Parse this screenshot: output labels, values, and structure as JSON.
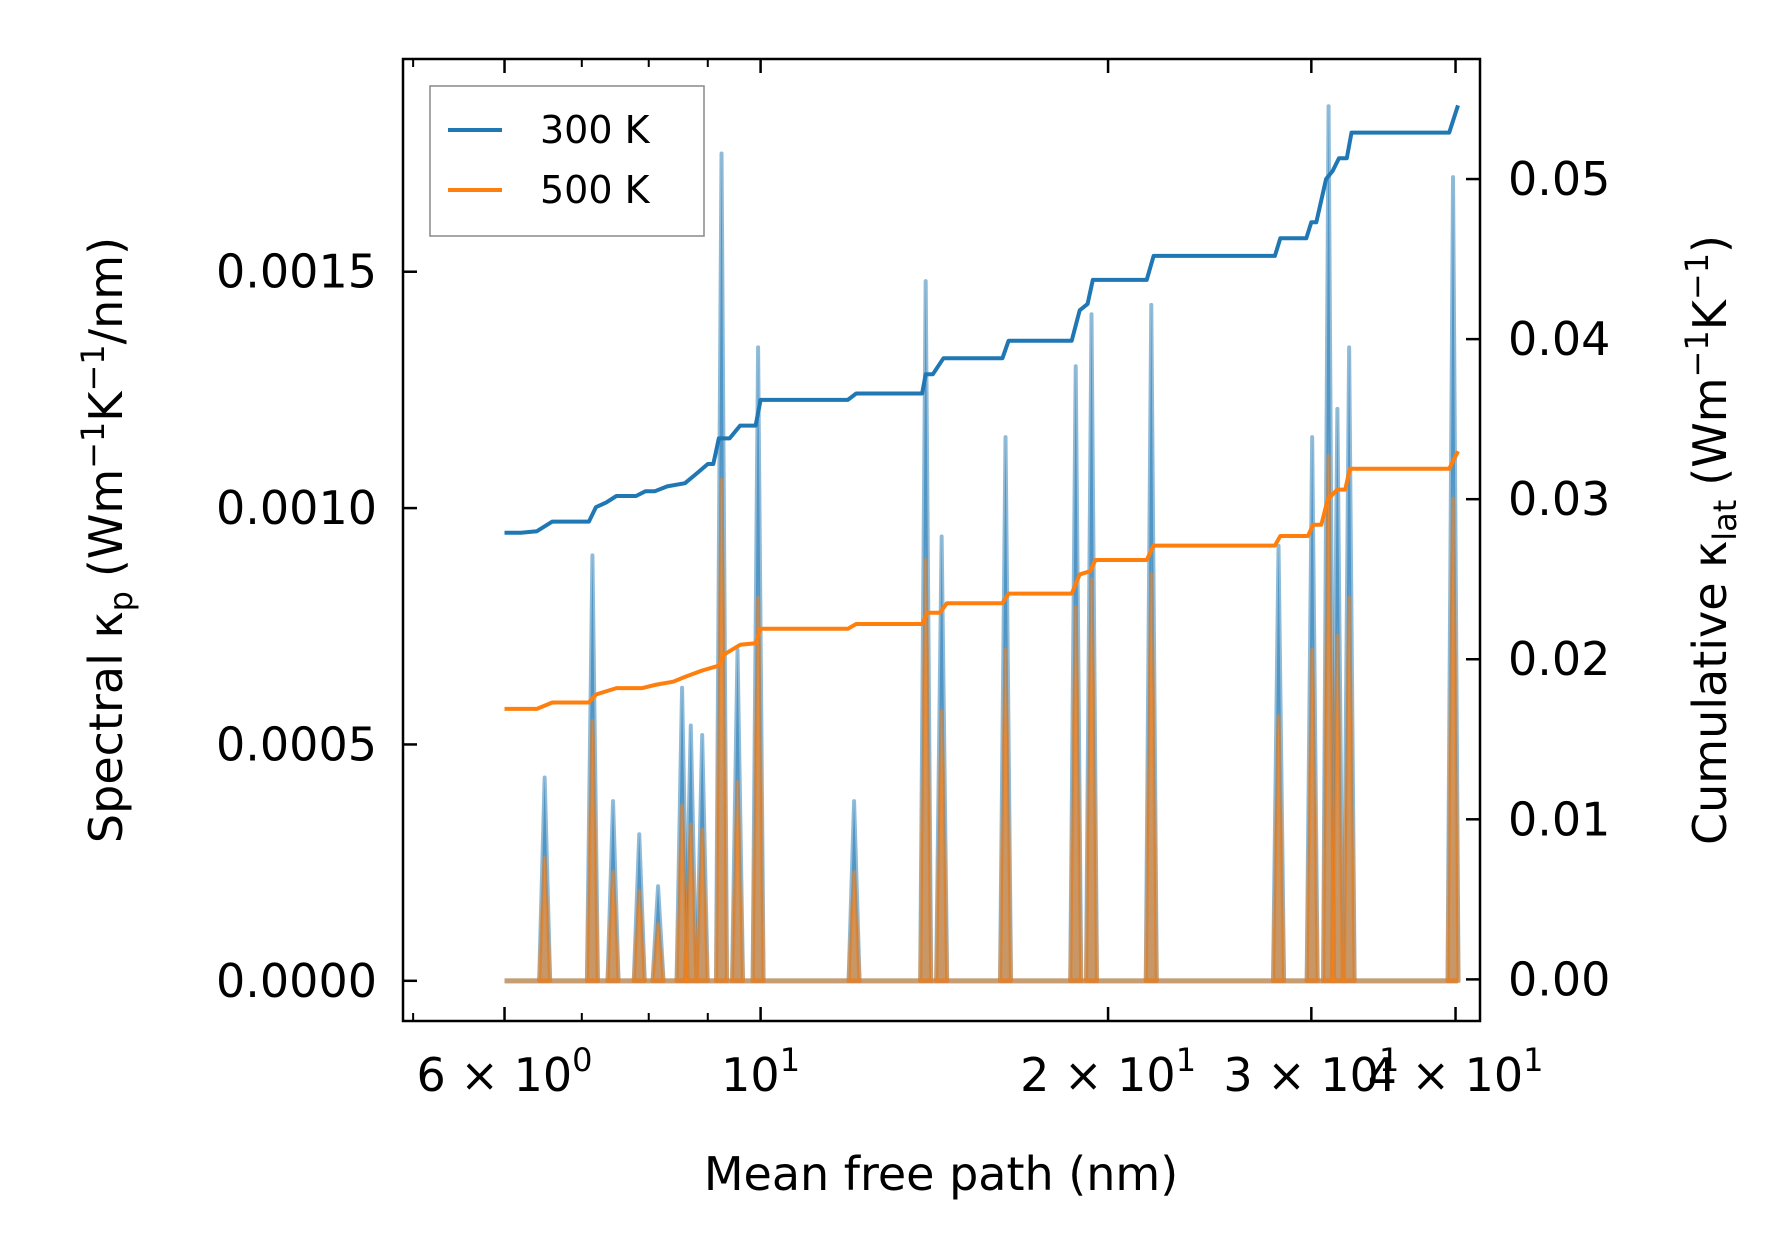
{
  "chart_data": {
    "type": "line",
    "x_scale": "log",
    "xlabel": "Mean free path (nm)",
    "ylabel_left": {
      "main": "Spectral κ",
      "sub": "p",
      "unit": "(Wm",
      "exp1": "−1",
      "mid": "K",
      "exp2": "−1",
      "tail": "/nm)"
    },
    "ylabel_right": {
      "main": "Cumulative κ",
      "sub": "lat",
      "unit": "(Wm",
      "exp1": "−1",
      "mid": "K",
      "exp2": "−1",
      "tail": ")"
    },
    "xlim": [
      4.9,
      42
    ],
    "ylim_left": [
      -8.5e-05,
      0.00195
    ],
    "ylim_right": [
      -0.0026,
      0.0575
    ],
    "x_ticks": [
      {
        "value": 6,
        "mantissa": "6 × 10",
        "exp": "0"
      },
      {
        "value": 10,
        "mantissa": "10",
        "exp": "1"
      },
      {
        "value": 20,
        "mantissa": "2 × 10",
        "exp": "1"
      },
      {
        "value": 30,
        "mantissa": "3 × 10",
        "exp": "1"
      },
      {
        "value": 40,
        "mantissa": "4 × 10",
        "exp": "1"
      }
    ],
    "y_ticks_left": [
      {
        "value": 0,
        "label": "0.0000"
      },
      {
        "value": 0.0005,
        "label": "0.0005"
      },
      {
        "value": 0.001,
        "label": "0.0010"
      },
      {
        "value": 0.0015,
        "label": "0.0015"
      }
    ],
    "y_ticks_right": [
      {
        "value": 0,
        "label": "0.00"
      },
      {
        "value": 0.01,
        "label": "0.01"
      },
      {
        "value": 0.02,
        "label": "0.02"
      },
      {
        "value": 0.03,
        "label": "0.03"
      },
      {
        "value": 0.04,
        "label": "0.04"
      },
      {
        "value": 0.05,
        "label": "0.05"
      }
    ],
    "x_range": [
      6.0,
      40.2
    ],
    "legend": {
      "location": "upper left",
      "entries": [
        {
          "label": "300 K",
          "color": "#1f77b4"
        },
        {
          "label": "500 K",
          "color": "#ff7f0e"
        }
      ]
    },
    "series": [
      {
        "name": "300 K",
        "color": "#1f77b4",
        "spectral_peaks": [
          {
            "x": 6.5,
            "y": 0.00043
          },
          {
            "x": 7.15,
            "y": 0.0009
          },
          {
            "x": 7.45,
            "y": 0.00038
          },
          {
            "x": 7.85,
            "y": 0.00031
          },
          {
            "x": 8.15,
            "y": 0.0002
          },
          {
            "x": 8.55,
            "y": 0.00062
          },
          {
            "x": 8.7,
            "y": 0.00054
          },
          {
            "x": 8.9,
            "y": 0.00052
          },
          {
            "x": 9.25,
            "y": 0.00175
          },
          {
            "x": 9.55,
            "y": 0.0007
          },
          {
            "x": 9.95,
            "y": 0.00134
          },
          {
            "x": 12.05,
            "y": 0.00038
          },
          {
            "x": 13.9,
            "y": 0.00148
          },
          {
            "x": 14.35,
            "y": 0.00094
          },
          {
            "x": 16.3,
            "y": 0.00115
          },
          {
            "x": 18.75,
            "y": 0.0013
          },
          {
            "x": 19.35,
            "y": 0.00141
          },
          {
            "x": 21.8,
            "y": 0.00143
          },
          {
            "x": 28.1,
            "y": 0.00092
          },
          {
            "x": 30.05,
            "y": 0.00115
          },
          {
            "x": 31.05,
            "y": 0.00185
          },
          {
            "x": 31.6,
            "y": 0.00121
          },
          {
            "x": 32.35,
            "y": 0.00134
          },
          {
            "x": 39.8,
            "y": 0.0017
          }
        ],
        "cumulative": [
          [
            6.0,
            0.0279
          ],
          [
            6.2,
            0.0279
          ],
          [
            6.4,
            0.028
          ],
          [
            6.6,
            0.0286
          ],
          [
            6.9,
            0.0286
          ],
          [
            7.1,
            0.0286
          ],
          [
            7.2,
            0.0295
          ],
          [
            7.35,
            0.0298
          ],
          [
            7.5,
            0.0302
          ],
          [
            7.8,
            0.0302
          ],
          [
            7.95,
            0.0305
          ],
          [
            8.1,
            0.0305
          ],
          [
            8.3,
            0.0308
          ],
          [
            8.6,
            0.031
          ],
          [
            8.8,
            0.0316
          ],
          [
            9.0,
            0.0322
          ],
          [
            9.1,
            0.0322
          ],
          [
            9.2,
            0.0338
          ],
          [
            9.4,
            0.0338
          ],
          [
            9.6,
            0.0346
          ],
          [
            9.9,
            0.0346
          ],
          [
            10.0,
            0.0362
          ],
          [
            11.9,
            0.0362
          ],
          [
            12.1,
            0.0366
          ],
          [
            13.8,
            0.0366
          ],
          [
            13.9,
            0.0378
          ],
          [
            14.1,
            0.0378
          ],
          [
            14.4,
            0.0388
          ],
          [
            16.2,
            0.0388
          ],
          [
            16.4,
            0.0399
          ],
          [
            18.6,
            0.0399
          ],
          [
            18.9,
            0.0418
          ],
          [
            19.2,
            0.0422
          ],
          [
            19.4,
            0.0437
          ],
          [
            21.6,
            0.0437
          ],
          [
            21.9,
            0.0452
          ],
          [
            27.9,
            0.0452
          ],
          [
            28.2,
            0.0463
          ],
          [
            29.7,
            0.0463
          ],
          [
            30.0,
            0.0473
          ],
          [
            30.3,
            0.0473
          ],
          [
            30.9,
            0.05
          ],
          [
            31.3,
            0.0505
          ],
          [
            31.7,
            0.0513
          ],
          [
            32.2,
            0.0513
          ],
          [
            32.5,
            0.0529
          ],
          [
            39.5,
            0.0529
          ],
          [
            40.2,
            0.0546
          ]
        ]
      },
      {
        "name": "500 K",
        "color": "#ff7f0e",
        "spectral_peaks": [
          {
            "x": 6.5,
            "y": 0.00026
          },
          {
            "x": 7.15,
            "y": 0.00055
          },
          {
            "x": 7.45,
            "y": 0.00023
          },
          {
            "x": 7.85,
            "y": 0.00019
          },
          {
            "x": 8.15,
            "y": 0.00012
          },
          {
            "x": 8.55,
            "y": 0.00037
          },
          {
            "x": 8.7,
            "y": 0.00033
          },
          {
            "x": 8.9,
            "y": 0.00032
          },
          {
            "x": 9.25,
            "y": 0.00106
          },
          {
            "x": 9.55,
            "y": 0.00042
          },
          {
            "x": 9.95,
            "y": 0.00081
          },
          {
            "x": 12.05,
            "y": 0.00023
          },
          {
            "x": 13.9,
            "y": 0.00089
          },
          {
            "x": 14.35,
            "y": 0.00057
          },
          {
            "x": 16.3,
            "y": 0.0007
          },
          {
            "x": 18.75,
            "y": 0.00079
          },
          {
            "x": 19.35,
            "y": 0.00085
          },
          {
            "x": 21.8,
            "y": 0.00086
          },
          {
            "x": 28.1,
            "y": 0.00056
          },
          {
            "x": 30.05,
            "y": 0.0007
          },
          {
            "x": 31.05,
            "y": 0.00111
          },
          {
            "x": 31.6,
            "y": 0.00073
          },
          {
            "x": 32.35,
            "y": 0.00081
          },
          {
            "x": 39.8,
            "y": 0.00102
          }
        ],
        "cumulative": [
          [
            6.0,
            0.0169
          ],
          [
            6.4,
            0.0169
          ],
          [
            6.6,
            0.0173
          ],
          [
            7.1,
            0.0173
          ],
          [
            7.2,
            0.0178
          ],
          [
            7.5,
            0.0182
          ],
          [
            7.9,
            0.0182
          ],
          [
            8.1,
            0.0184
          ],
          [
            8.4,
            0.0186
          ],
          [
            8.6,
            0.0189
          ],
          [
            8.9,
            0.0193
          ],
          [
            9.2,
            0.0196
          ],
          [
            9.3,
            0.0203
          ],
          [
            9.6,
            0.0209
          ],
          [
            9.9,
            0.021
          ],
          [
            10.0,
            0.0219
          ],
          [
            11.9,
            0.0219
          ],
          [
            12.1,
            0.0222
          ],
          [
            13.8,
            0.0222
          ],
          [
            13.95,
            0.0229
          ],
          [
            14.3,
            0.0229
          ],
          [
            14.5,
            0.0235
          ],
          [
            16.2,
            0.0235
          ],
          [
            16.4,
            0.0241
          ],
          [
            18.6,
            0.0241
          ],
          [
            18.9,
            0.0253
          ],
          [
            19.3,
            0.0255
          ],
          [
            19.5,
            0.0262
          ],
          [
            21.6,
            0.0262
          ],
          [
            21.9,
            0.0271
          ],
          [
            27.9,
            0.0271
          ],
          [
            28.2,
            0.0277
          ],
          [
            29.8,
            0.0277
          ],
          [
            30.1,
            0.0284
          ],
          [
            30.6,
            0.0284
          ],
          [
            31.0,
            0.03
          ],
          [
            31.6,
            0.0306
          ],
          [
            32.1,
            0.0306
          ],
          [
            32.4,
            0.0319
          ],
          [
            39.5,
            0.0319
          ],
          [
            40.2,
            0.033
          ]
        ]
      }
    ]
  }
}
